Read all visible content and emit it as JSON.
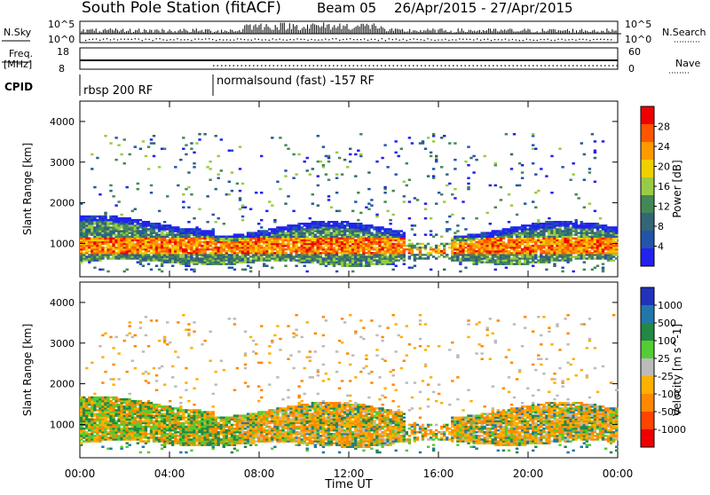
{
  "header": {
    "title": "South Pole Station (fitACF)",
    "beam": "Beam 05",
    "dates": "26/Apr/2015 - 27/Apr/2015"
  },
  "top_panels": {
    "nsky_label": "N.Sky",
    "nsky_ticks": [
      "10^5",
      "10^0"
    ],
    "nsearch_label": "N.Search",
    "nsearch_ticks": [
      "10^5",
      "10^0"
    ],
    "freq_label": "Freq.",
    "freq_unit": "[MHz]",
    "freq_ticks": [
      "18",
      "8"
    ],
    "nave_label": "Nave",
    "nave_ticks": [
      "60",
      "0"
    ],
    "cpid_label": "CPID",
    "cpid_segments": [
      {
        "label": "rbsp 200 RF",
        "start_hour": 0
      },
      {
        "label": "normalsound (fast) -157 RF",
        "start_hour": 6
      }
    ]
  },
  "colors": {
    "power_scale": [
      "#2222ee",
      "#2255aa",
      "#336677",
      "#448855",
      "#99cc44",
      "#f0d000",
      "#ff9900",
      "#ff5500",
      "#ee0000"
    ],
    "velocity_scale": [
      "#ee0000",
      "#ff4400",
      "#ff8800",
      "#ffb000",
      "#bbbbbb",
      "#55cc33",
      "#228844",
      "#2277aa",
      "#2233bb"
    ]
  },
  "chart_data": [
    {
      "type": "heatmap",
      "title": "",
      "xlabel": "",
      "ylabel": "Slant Range [km]",
      "x_ticks": [
        "00:00",
        "04:00",
        "08:00",
        "12:00",
        "16:00",
        "20:00",
        "00:00"
      ],
      "y_ticks": [
        1000,
        2000,
        3000,
        4000
      ],
      "xlim_hours": [
        0,
        24
      ],
      "ylim_km": [
        180,
        4500
      ],
      "colorbar": {
        "label": "Power [dB]",
        "ticks": [
          "28",
          "24",
          "20",
          "16",
          "12",
          "8",
          "4"
        ],
        "range": [
          0,
          30
        ]
      },
      "features": [
        {
          "start_hour": 0,
          "end_hour": 24,
          "range_km": [
            600,
            1500
          ],
          "value": "strong echoes, 20-30 dB"
        },
        {
          "start_hour": 14,
          "end_hour": 16.5,
          "range_km": [
            900,
            1600
          ],
          "value": "weaker 8-20 dB"
        },
        {
          "start_hour": 2,
          "end_hour": 16,
          "range_km": [
            2300,
            3600
          ],
          "value": "scattered 4-16 dB"
        }
      ]
    },
    {
      "type": "heatmap",
      "title": "",
      "xlabel": "Time UT",
      "ylabel": "Slant Range [km]",
      "x_ticks": [
        "00:00",
        "04:00",
        "08:00",
        "12:00",
        "16:00",
        "20:00",
        "00:00"
      ],
      "y_ticks": [
        1000,
        2000,
        3000,
        4000
      ],
      "xlim_hours": [
        0,
        24
      ],
      "ylim_km": [
        180,
        4500
      ],
      "colorbar": {
        "label": "Velocity [m s^-1]",
        "ticks": [
          "1000",
          "500",
          "100",
          "25",
          "-25",
          "-100",
          "-500",
          "-1000"
        ],
        "range": [
          -1000,
          1000
        ]
      },
      "features": [
        {
          "start_hour": 0,
          "end_hour": 8,
          "range_km": [
            500,
            1500
          ],
          "value": "mixed green and orange"
        },
        {
          "start_hour": 8,
          "end_hour": 24,
          "range_km": [
            500,
            1500
          ],
          "value": "mostly orange with green/blue patches"
        }
      ]
    }
  ]
}
